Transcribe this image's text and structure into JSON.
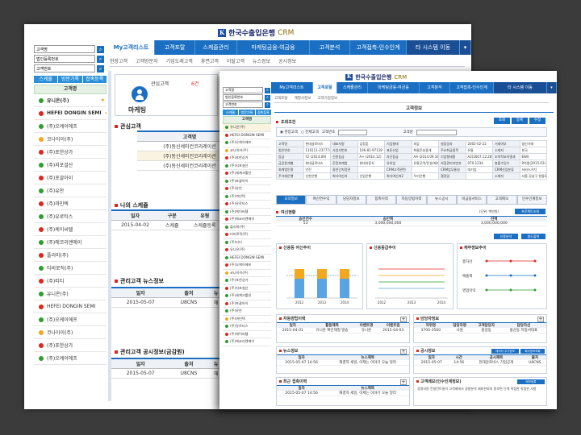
{
  "brand": {
    "logo_mark": "K",
    "name": "한국수출입은행",
    "product": "CRM"
  },
  "back_window": {
    "nav": [
      "My고객리스트",
      "고객포탈",
      "스케줄관리",
      "마케팅금융-여금융",
      "고객분석",
      "고객접촉-인수인계",
      "타 시스템 이동"
    ],
    "subnav": [
      "현장고객",
      "고객방문자",
      "기업도래고객",
      "휴면고객",
      "이탈고객",
      "뉴스정보",
      "공시정보"
    ],
    "search_fields": [
      "고객명",
      "법인등록번호",
      "고객번호"
    ],
    "side_tabs": [
      "스케줄",
      "방문기록",
      "접촉등록"
    ],
    "list_header": "고객명",
    "customers": [
      {
        "name": "유니온(주)",
        "dot": "g",
        "star": true
      },
      {
        "name": "HEFEI DONGIN SEMI",
        "dot": "r",
        "star": true
      },
      {
        "name": "(주)오케이에프",
        "dot": "g",
        "star": false
      },
      {
        "name": "코나아이(주)",
        "dot": "y",
        "star": false
      },
      {
        "name": "(주)포한상가",
        "dot": "r",
        "star": false
      },
      {
        "name": "(주)지포설산",
        "dot": "g",
        "star": false
      },
      {
        "name": "(주)포괄아이",
        "dot": "r",
        "star": false
      },
      {
        "name": "(주)유안",
        "dot": "g",
        "star": false
      },
      {
        "name": "(주)까인텍",
        "dot": "r",
        "star": false
      },
      {
        "name": "(주)유로티스",
        "dot": "g",
        "star": false
      },
      {
        "name": "(주)케이씨텔",
        "dot": "r",
        "star": false
      },
      {
        "name": "(주)에코리엔에이",
        "dot": "g",
        "star": false
      },
      {
        "name": "플리마(주)",
        "dot": "r",
        "star": false
      },
      {
        "name": "티비로직(주)",
        "dot": "g",
        "star": false
      },
      {
        "name": "(주)티티",
        "dot": "r",
        "star": false
      },
      {
        "name": "유니온(주)",
        "dot": "g",
        "star": false
      },
      {
        "name": "HEFEI DONGIN SEMI",
        "dot": "r",
        "star": false
      },
      {
        "name": "(주)오케이에프",
        "dot": "g",
        "star": false
      },
      {
        "name": "코나아이(주)",
        "dot": "y",
        "star": false
      },
      {
        "name": "(주)포한상가",
        "dot": "r",
        "star": false
      },
      {
        "name": "(주)오케이에프",
        "dot": "g",
        "star": false
      }
    ],
    "marketing_card": {
      "label": "관심고객",
      "title": "마케팅",
      "count": "6건"
    },
    "interest_section": {
      "title": "관심고객",
      "header": "고객명",
      "rows": [
        "(주)동신세미컨코리레이션",
        "(주)동신세미컨코리레이션",
        "(주)동신세미컨코리레이션"
      ]
    },
    "schedule_section": {
      "title": "나의 스케쥴",
      "headers": [
        "일자",
        "구분",
        "유형"
      ],
      "rows": [
        [
          "2015-04-02",
          "스케쥴",
          "스케쥴등록"
        ]
      ]
    },
    "news_section": {
      "title": "관리고객 뉴스정보",
      "headers": [
        "일자",
        "출처",
        "뉴"
      ],
      "rows": [
        [
          "2015-05-07",
          "U8CNS",
          "해"
        ]
      ]
    },
    "disclosure_section": {
      "title": "관리고객 공시정보(금감원)",
      "headers": [
        "일자",
        "출처",
        "뉴"
      ],
      "rows": [
        [
          "2015-05-07",
          "U8CNS",
          "해"
        ]
      ]
    }
  },
  "front_window": {
    "nav": [
      "My고객리스트",
      "고객포탈",
      "스케줄관리",
      "마케팅금융-여금융",
      "고객분석",
      "고객접촉-인수인계",
      "타 시스템 이동"
    ],
    "subnav": [
      "고객포탈",
      "계열사정보",
      "고객기업정보"
    ],
    "search_fields": [
      "고객명",
      "법인등록번호",
      "고객번호"
    ],
    "side_tabs": [
      "스케줄",
      "방문기록",
      "접촉등록"
    ],
    "list_header": "고객명",
    "customers": [
      {
        "name": "유니온(주)",
        "dot": "g"
      },
      {
        "name": "HEFEI DONGIN SEMI",
        "dot": "r"
      },
      {
        "name": "(주)오케이에프",
        "dot": "g"
      },
      {
        "name": "코나아이(주)",
        "dot": "y"
      },
      {
        "name": "(주)포한상가",
        "dot": "r"
      },
      {
        "name": "(주)지포설산",
        "dot": "g"
      },
      {
        "name": "(주)세계크롤인",
        "dot": "r"
      },
      {
        "name": "(주)포괄아이",
        "dot": "g"
      },
      {
        "name": "(주)유안",
        "dot": "r"
      },
      {
        "name": "(주)까인텍",
        "dot": "g"
      },
      {
        "name": "(주)유로티스",
        "dot": "r"
      },
      {
        "name": "(주)케이씨텔",
        "dot": "g"
      },
      {
        "name": "(주)에코리엔에이",
        "dot": "r"
      },
      {
        "name": "플리마(주)",
        "dot": "g"
      },
      {
        "name": "티비로직(주)",
        "dot": "r"
      },
      {
        "name": "(주)티티",
        "dot": "g"
      },
      {
        "name": "유니온(주)",
        "dot": "r"
      },
      {
        "name": "HEFEI DONGIN SEMI",
        "dot": "g"
      },
      {
        "name": "(주)오케이에프",
        "dot": "r"
      },
      {
        "name": "코나아이(주)",
        "dot": "y"
      },
      {
        "name": "(주)포한상가",
        "dot": "g"
      },
      {
        "name": "(주)지포설산",
        "dot": "r"
      },
      {
        "name": "(주)세계크롤인",
        "dot": "g"
      },
      {
        "name": "(주)포괄아이",
        "dot": "r"
      },
      {
        "name": "(주)유안",
        "dot": "g"
      },
      {
        "name": "(주)까인텍",
        "dot": "y"
      },
      {
        "name": "(주)유로티스",
        "dot": "g"
      },
      {
        "name": "(주)케이씨텔",
        "dot": "r"
      },
      {
        "name": "(주)에코리엔에이",
        "dot": "g"
      }
    ],
    "page_title": "고객정보",
    "action_buttons": [
      "조회",
      "등록",
      "수정"
    ],
    "search_title": "조회조건",
    "radio_labels": [
      "현장고객",
      "전체고객"
    ],
    "search_labels": [
      "고객번호",
      "고객명"
    ],
    "info_rows": [
      [
        "고객명",
        "현대글로비스",
        "대표자명",
        "김정훈",
        "기업형태",
        "외감",
        "설립일자",
        "2002-02-22",
        "거래여부",
        "법인거래"
      ],
      [
        "법인번호",
        "110111-2377749",
        "사업자번호",
        "106-81-97118",
        "표준산업",
        "화물운송중개",
        "주요취급품목",
        "유통",
        "소재지",
        "한국"
      ],
      [
        "등급",
        "F2 (2014.09)",
        "신용등급",
        "A+ (2014.12)",
        "자산등급",
        "AA (2014.09.16)",
        "기업형태중",
        "A2(2007.12.28)",
        "조직적요약결과",
        "EW0"
      ],
      [
        "금감원개별",
        "현대글로비스",
        "운정회계법",
        "현대자동차",
        "유의업",
        "유통무역/운송/제조",
        "지점관리자번호",
        "070-1234",
        "총불수임수",
        "9억원(2015.03)"
      ],
      [
        "회계법인명",
        "안진",
        "중연간지정관",
        "",
        "CRM고객관련",
        "",
        "CRM업무통일",
        "대기업",
        "CRM신업분류",
        "서비스가치"
      ],
      [
        "주거래은행",
        "신한은행",
        "최다여신처",
        "산업은행",
        "최다여신처2",
        "우리은행",
        "결정일",
        "",
        "소재지",
        "서울 강남구 헌릉로 12"
      ]
    ],
    "func_tabs": [
      "요약정보",
      "여신연수익",
      "담당자정보",
      "접촉이력",
      "자동양립이력",
      "뉴스공시",
      "비금융서비스",
      "고객메모",
      "인수인계정보"
    ],
    "balance": {
      "title": "여신현황",
      "unit": "(단위: 백만원)",
      "unit_btn": "프로젝트조회",
      "headers": [
        "승인건수",
        "승인액",
        "잔액"
      ],
      "row": [
        "53",
        "3,000,000,000",
        "3,000,000,000"
      ],
      "btns": [
        "신용분석",
        "원도출력"
      ]
    },
    "charts": [
      {
        "title": "신용등 여신추이",
        "years": [
          "2012",
          "2013",
          "2014"
        ]
      },
      {
        "title": "신용등급추이",
        "years": [
          "2012",
          "2013",
          "2014"
        ]
      },
      {
        "title": "재무정보추이",
        "rows": [
          "총자산",
          "매출액",
          "영업이익"
        ]
      }
    ],
    "loan_panel": {
      "title": "자동양립이력",
      "headers": [
        "일자",
        "활동제목",
        "이벤트명",
        "이벤트일"
      ],
      "rows": [
        [
          "2015-04-01",
          "유니온 확인해질 발송",
          "유니온",
          "2015-04-03"
        ]
      ]
    },
    "contact_panel": {
      "title": "담당자정보",
      "headers": [
        "직위명",
        "담당자명",
        "고객담당자",
        "담당자선"
      ],
      "rows": [
        [
          "3700-3500",
          "사원",
          "홍길동",
          "울산동 지점서대표"
        ]
      ]
    },
    "news_panel": {
      "title": "뉴스정보",
      "headers": [
        "일자",
        "뉴스제목"
      ],
      "rows": [
        [
          "2015-05-07 14:56",
          "해결자 세일, 이제는 이야기 오늘 달라"
        ]
      ]
    },
    "disc_panel": {
      "title": "공시정보",
      "headers": [
        "일자",
        "시간",
        "공시제목",
        "출처"
      ],
      "rows": [
        [
          "2015-05-07",
          "14:56",
          "현대글로비스 기업공개",
          "U8CNS"
        ]
      ],
      "btns": [
        "데이터 주가정보",
        "회사정보조회"
      ]
    },
    "recent_panel": {
      "title": "최근 접촉이력",
      "headers": [
        "일자",
        "뉴스제목"
      ],
      "rows": [
        [
          "2015-05-07 14:56",
          "해결자 세일, 이제는 이야기 오늘 달라"
        ]
      ]
    },
    "memo_panel": {
      "title": "고객메모(인수인계정보)",
      "btn": "메모등록",
      "text": "경영지원 컨설턴트들이 고객회에서 경험분석 제외한외의 종로면 단계 직접한 직접한 사항"
    }
  }
}
